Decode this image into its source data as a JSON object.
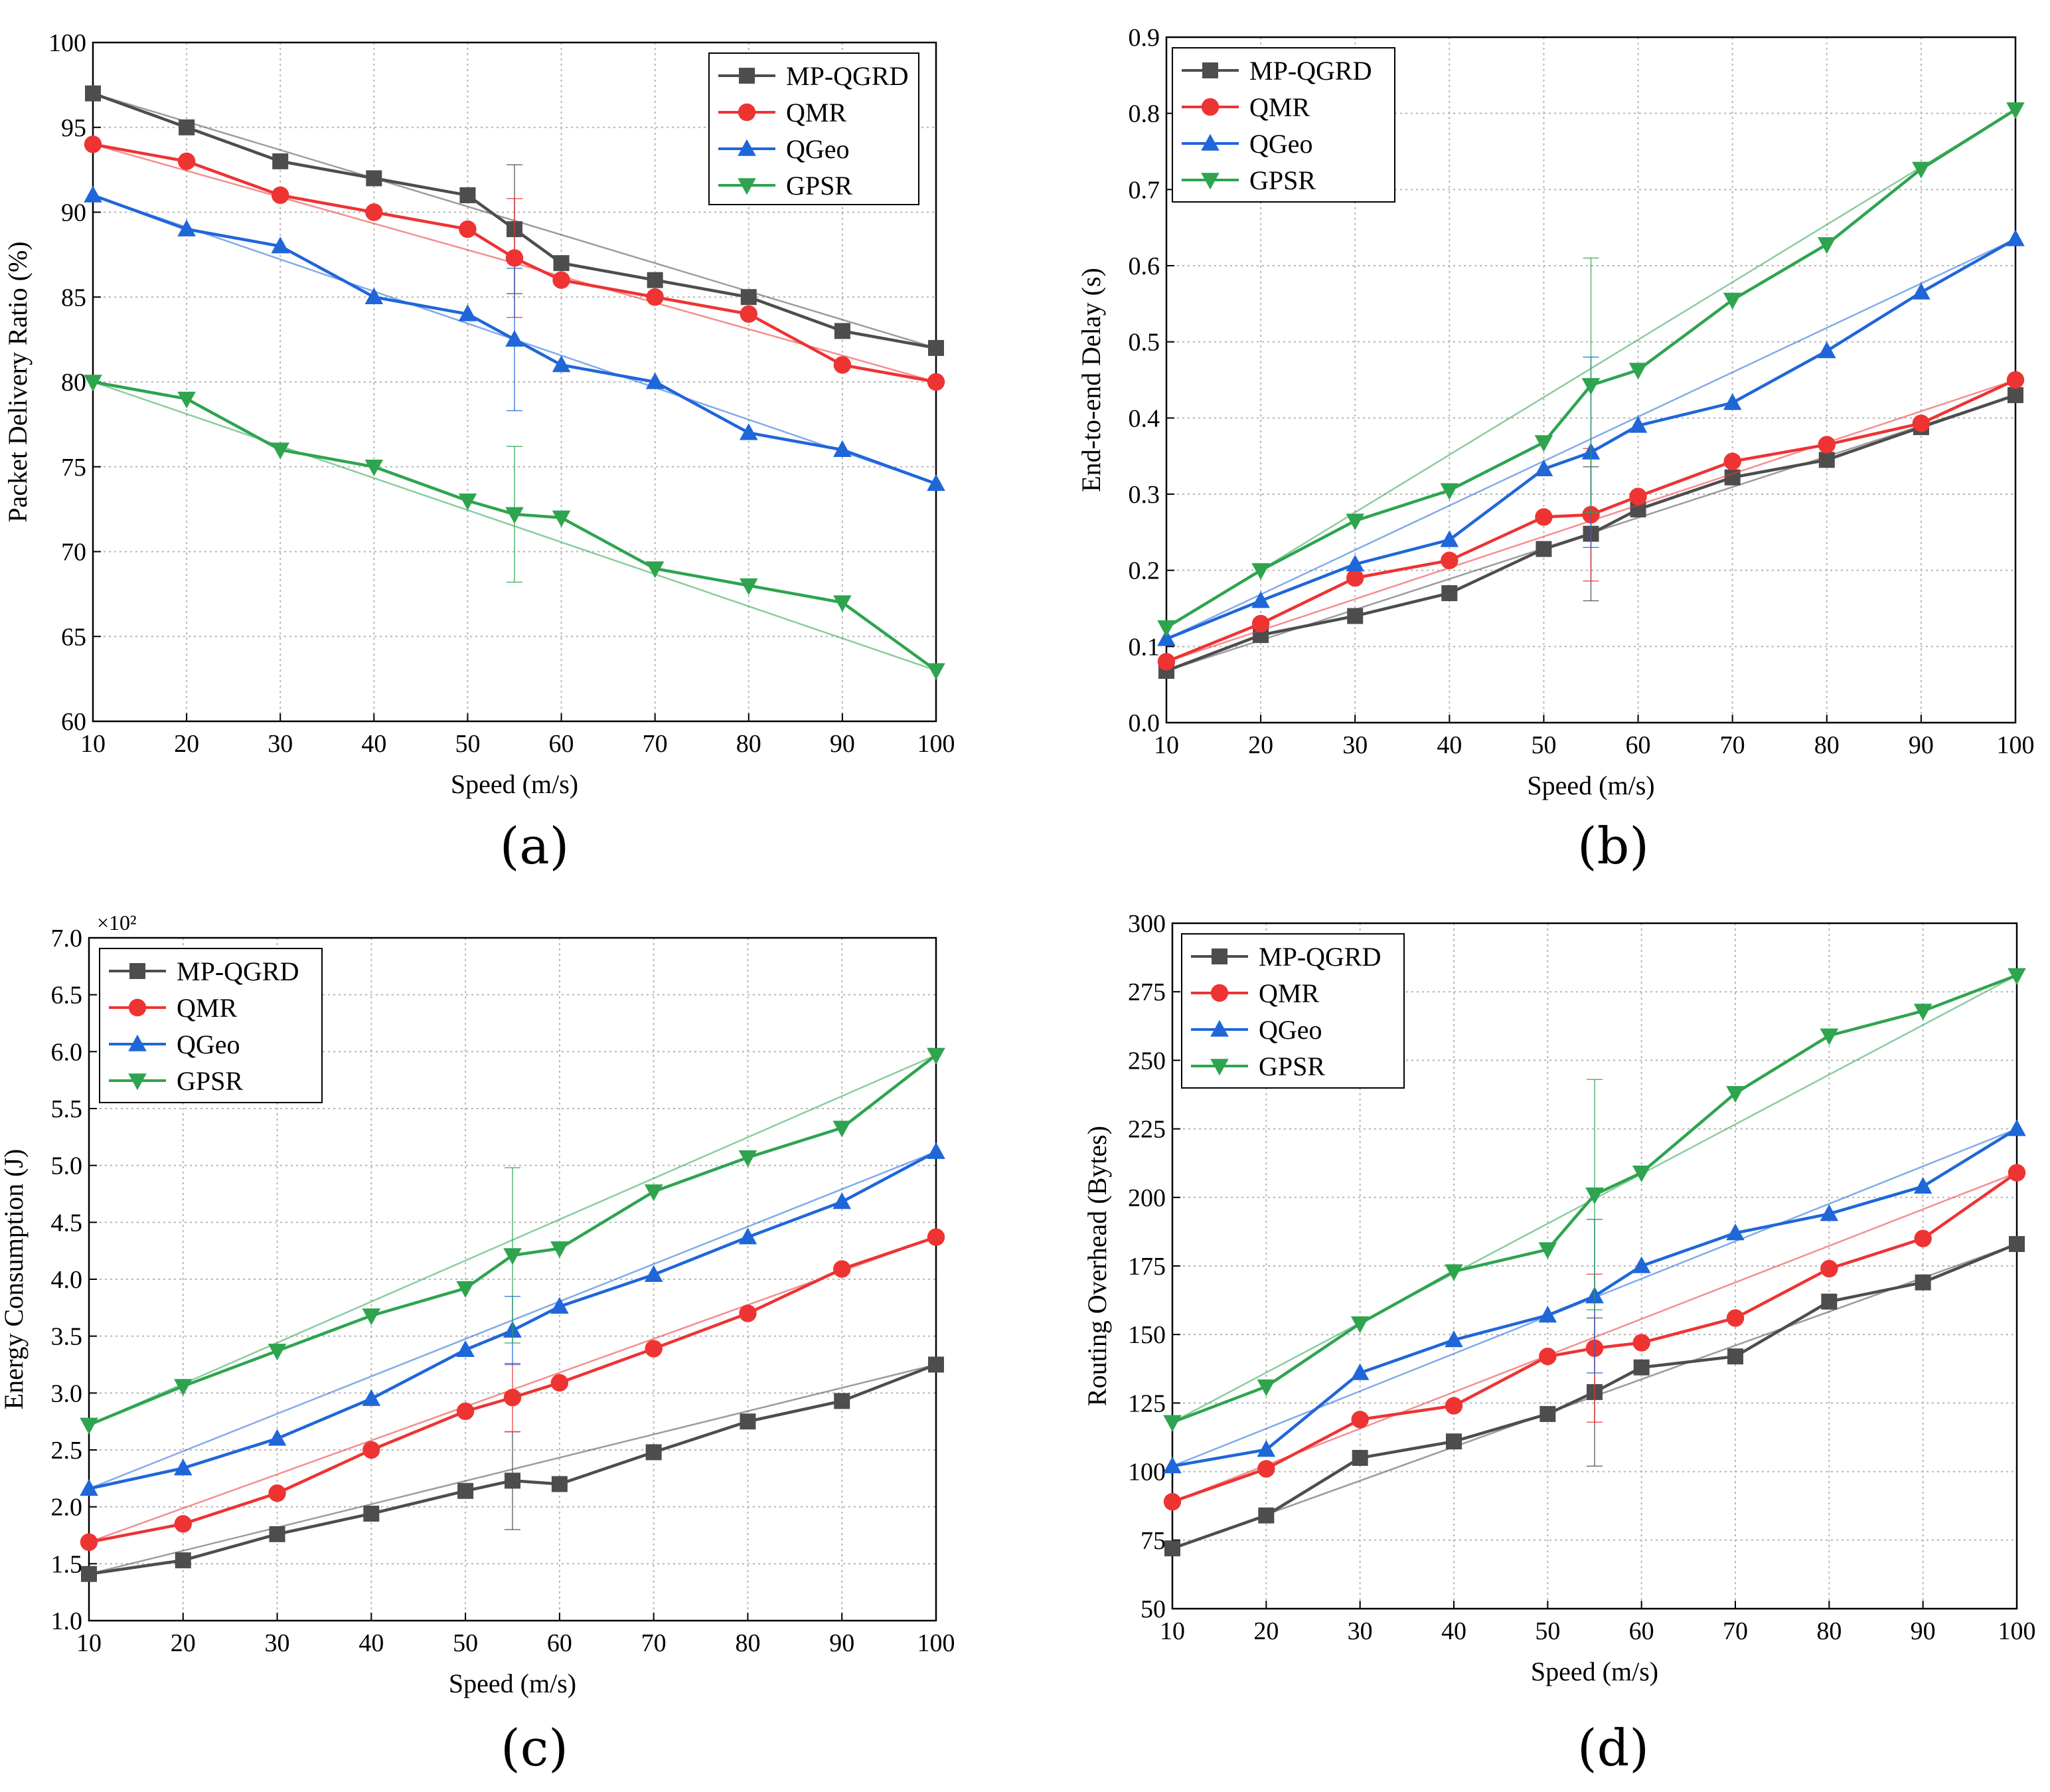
{
  "colors": {
    "MP-QGRD": "#4d4d4d",
    "QMR": "#ee3333",
    "QGeo": "#1f66d9",
    "GPSR": "#2ea44f"
  },
  "chart_data": [
    {
      "id": "a",
      "type": "line",
      "panel_label": "(a)",
      "xlabel": "Speed (m/s)",
      "ylabel": "Packet Delivery Ratio (%)",
      "x": [
        10,
        20,
        30,
        40,
        50,
        55,
        60,
        70,
        80,
        90,
        100
      ],
      "xticks": [
        10,
        20,
        30,
        40,
        50,
        60,
        70,
        80,
        90,
        100
      ],
      "yticks": [
        60,
        65,
        70,
        75,
        80,
        85,
        90,
        95,
        100
      ],
      "ytick_labels": [
        "60",
        "65",
        "70",
        "75",
        "80",
        "85",
        "90",
        "95",
        "100"
      ],
      "ylim": [
        60,
        100
      ],
      "y_multiplier": "",
      "legend": [
        "MP-QGRD",
        "QMR",
        "QGeo",
        "GPSR"
      ],
      "series": [
        {
          "name": "MP-QGRD",
          "marker": "square",
          "values": [
            97,
            95,
            93,
            92,
            91,
            89,
            87,
            86,
            85,
            83,
            82
          ],
          "error": 3.8
        },
        {
          "name": "QMR",
          "marker": "circle",
          "values": [
            94,
            93,
            91,
            90,
            89,
            87.3,
            86,
            85,
            84,
            81,
            80
          ],
          "error": 3.5
        },
        {
          "name": "QGeo",
          "marker": "triangle-up",
          "values": [
            91,
            89,
            88,
            85,
            84,
            82.5,
            81,
            80,
            77,
            76,
            74
          ],
          "error": 4.2
        },
        {
          "name": "GPSR",
          "marker": "triangle-down",
          "values": [
            80,
            79,
            76,
            75,
            73,
            72.2,
            72,
            69,
            68,
            67,
            63
          ],
          "error": 4.0
        }
      ]
    },
    {
      "id": "b",
      "type": "line",
      "panel_label": "(b)",
      "xlabel": "Speed (m/s)",
      "ylabel": "End-to-end Delay (s)",
      "x": [
        10,
        20,
        30,
        40,
        50,
        55,
        60,
        70,
        80,
        90,
        100
      ],
      "xticks": [
        10,
        20,
        30,
        40,
        50,
        60,
        70,
        80,
        90,
        100
      ],
      "yticks": [
        0.0,
        0.1,
        0.2,
        0.3,
        0.4,
        0.5,
        0.6,
        0.7,
        0.8,
        0.9
      ],
      "ytick_labels": [
        "0.0",
        "0.1",
        "0.2",
        "0.3",
        "0.4",
        "0.5",
        "0.6",
        "0.7",
        "0.8",
        "0.9"
      ],
      "ylim": [
        0,
        0.9
      ],
      "y_multiplier": "",
      "legend": [
        "MP-QGRD",
        "QMR",
        "QGeo",
        "GPSR"
      ],
      "series": [
        {
          "name": "MP-QGRD",
          "marker": "square",
          "values": [
            0.068,
            0.115,
            0.14,
            0.17,
            0.228,
            0.248,
            0.28,
            0.322,
            0.345,
            0.388,
            0.43
          ],
          "error": 0.088
        },
        {
          "name": "QMR",
          "marker": "circle",
          "values": [
            0.08,
            0.13,
            0.19,
            0.213,
            0.27,
            0.273,
            0.297,
            0.343,
            0.365,
            0.393,
            0.45
          ],
          "error": 0.087
        },
        {
          "name": "QGeo",
          "marker": "triangle-up",
          "values": [
            0.11,
            0.16,
            0.208,
            0.24,
            0.333,
            0.355,
            0.39,
            0.42,
            0.488,
            0.565,
            0.635
          ],
          "error": 0.125
        },
        {
          "name": "GPSR",
          "marker": "triangle-down",
          "values": [
            0.125,
            0.2,
            0.265,
            0.305,
            0.368,
            0.443,
            0.463,
            0.555,
            0.628,
            0.727,
            0.805
          ],
          "error": 0.167
        }
      ]
    },
    {
      "id": "c",
      "type": "line",
      "panel_label": "(c)",
      "xlabel": "Speed (m/s)",
      "ylabel": "Energy Consumption (J)",
      "x": [
        10,
        20,
        30,
        40,
        50,
        55,
        60,
        70,
        80,
        90,
        100
      ],
      "xticks": [
        10,
        20,
        30,
        40,
        50,
        60,
        70,
        80,
        90,
        100
      ],
      "yticks": [
        1.0,
        1.5,
        2.0,
        2.5,
        3.0,
        3.5,
        4.0,
        4.5,
        5.0,
        5.5,
        6.0,
        6.5,
        7.0
      ],
      "ytick_labels": [
        "1.0",
        "1.5",
        "2.0",
        "2.5",
        "3.0",
        "3.5",
        "4.0",
        "4.5",
        "5.0",
        "5.5",
        "6.0",
        "6.5",
        "7.0"
      ],
      "ylim": [
        1.0,
        7.0
      ],
      "y_multiplier": "×10²",
      "legend": [
        "MP-QGRD",
        "QMR",
        "QGeo",
        "GPSR"
      ],
      "series": [
        {
          "name": "MP-QGRD",
          "marker": "square",
          "values": [
            1.41,
            1.53,
            1.76,
            1.94,
            2.14,
            2.23,
            2.2,
            2.48,
            2.75,
            2.93,
            3.25
          ],
          "error": 0.43
        },
        {
          "name": "QMR",
          "marker": "circle",
          "values": [
            1.69,
            1.85,
            2.12,
            2.5,
            2.84,
            2.96,
            3.09,
            3.39,
            3.7,
            4.09,
            4.37
          ],
          "error": 0.3
        },
        {
          "name": "QGeo",
          "marker": "triangle-up",
          "values": [
            2.16,
            2.34,
            2.6,
            2.95,
            3.38,
            3.55,
            3.76,
            4.04,
            4.37,
            4.68,
            5.12
          ],
          "error": 0.3
        },
        {
          "name": "GPSR",
          "marker": "triangle-down",
          "values": [
            2.72,
            3.06,
            3.37,
            3.68,
            3.92,
            4.21,
            4.27,
            4.77,
            5.07,
            5.33,
            5.97
          ],
          "error": 0.77
        }
      ]
    },
    {
      "id": "d",
      "type": "line",
      "panel_label": "(d)",
      "xlabel": "Speed (m/s)",
      "ylabel": "Routing Overhead (Bytes)",
      "x": [
        10,
        20,
        30,
        40,
        50,
        55,
        60,
        70,
        80,
        90,
        100
      ],
      "xticks": [
        10,
        20,
        30,
        40,
        50,
        60,
        70,
        80,
        90,
        100
      ],
      "yticks": [
        50,
        75,
        100,
        125,
        150,
        175,
        200,
        225,
        250,
        275,
        300
      ],
      "ytick_labels": [
        "50",
        "75",
        "100",
        "125",
        "150",
        "175",
        "200",
        "225",
        "250",
        "275",
        "300"
      ],
      "ylim": [
        50,
        300
      ],
      "y_multiplier": "",
      "legend": [
        "MP-QGRD",
        "QMR",
        "QGeo",
        "GPSR"
      ],
      "series": [
        {
          "name": "MP-QGRD",
          "marker": "square",
          "values": [
            72,
            84,
            105,
            111,
            121,
            129,
            138,
            142,
            162,
            169,
            183
          ],
          "error": 27
        },
        {
          "name": "QMR",
          "marker": "circle",
          "values": [
            89,
            101,
            119,
            124,
            142,
            145,
            147,
            156,
            174,
            185,
            209
          ],
          "error": 27
        },
        {
          "name": "QGeo",
          "marker": "triangle-up",
          "values": [
            102,
            108,
            136,
            148,
            157,
            164,
            175,
            187,
            194,
            204,
            225
          ],
          "error": 28
        },
        {
          "name": "GPSR",
          "marker": "triangle-down",
          "values": [
            118,
            131,
            154,
            173,
            181,
            201,
            209,
            238,
            259,
            268,
            281
          ],
          "error": 42
        }
      ]
    }
  ]
}
